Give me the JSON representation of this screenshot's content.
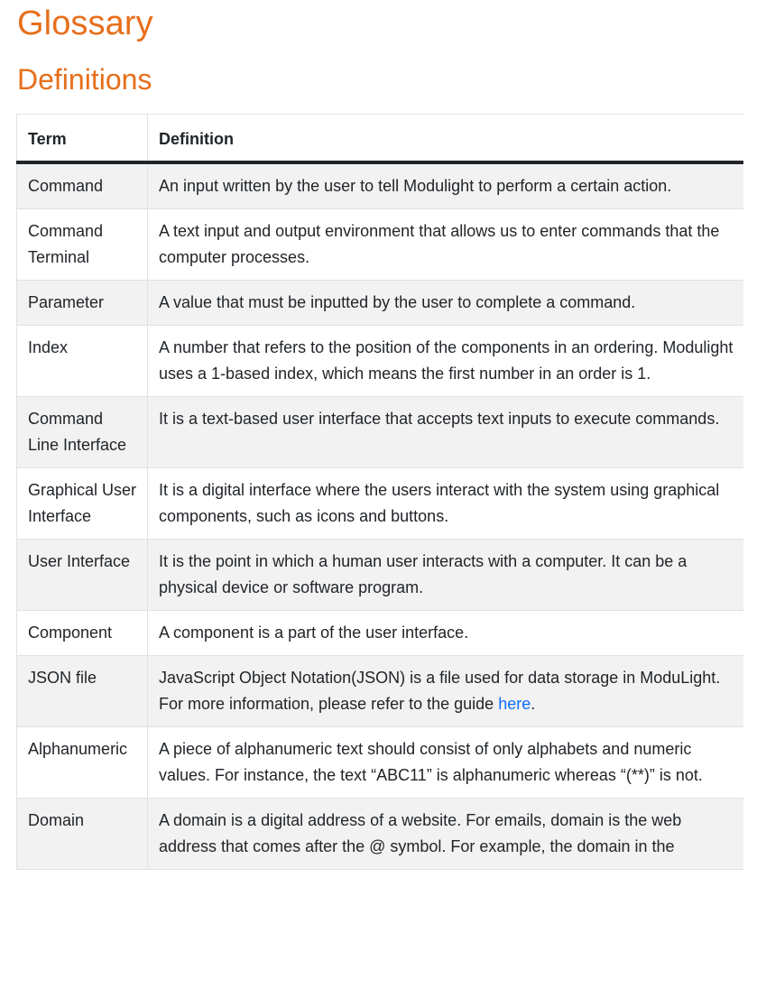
{
  "page": {
    "title": "Glossary",
    "section_title": "Definitions"
  },
  "table": {
    "headers": {
      "term": "Term",
      "definition": "Definition"
    },
    "rows": [
      {
        "term": "Command",
        "definition": "An input written by the user to tell Modulight to perform a certain action."
      },
      {
        "term": "Command Terminal",
        "definition": "A text input and output environment that allows us to enter commands that the computer processes."
      },
      {
        "term": "Parameter",
        "definition": "A value that must be inputted by the user to complete a command."
      },
      {
        "term": "Index",
        "definition": "A number that refers to the position of the components in an ordering. Modulight uses a 1-based index, which means the first number in an order is 1."
      },
      {
        "term": "Command Line Interface",
        "definition": "It is a text-based user interface that accepts text inputs to execute commands."
      },
      {
        "term": "Graphical User Interface",
        "definition": "It is a digital interface where the users interact with the system using graphical components, such as icons and buttons."
      },
      {
        "term": "User Interface",
        "definition": "It is the point in which a human user interacts with a computer. It can be a physical device or software program."
      },
      {
        "term": "Component",
        "definition": "A component is a part of the user interface."
      },
      {
        "term": "JSON file",
        "definition_before_link": "JavaScript Object Notation(JSON) is a file used for data storage in ModuLight. For more information, please refer to the guide ",
        "link_text": "here",
        "definition_after_link": "."
      },
      {
        "term": "Alphanumeric",
        "definition": "A piece of alphanumeric text should consist of only alphabets and numeric values. For instance, the text “ABC11” is alphanumeric whereas “(**)” is not."
      },
      {
        "term": "Domain",
        "definition": "A domain is a digital address of a website. For emails, domain is the web address that comes after the @ symbol. For example, the domain in the"
      }
    ]
  },
  "colors": {
    "heading": "#e76f1b",
    "link": "#0d6efd",
    "stripe": "#f2f2f2",
    "border": "#dee2e6"
  }
}
